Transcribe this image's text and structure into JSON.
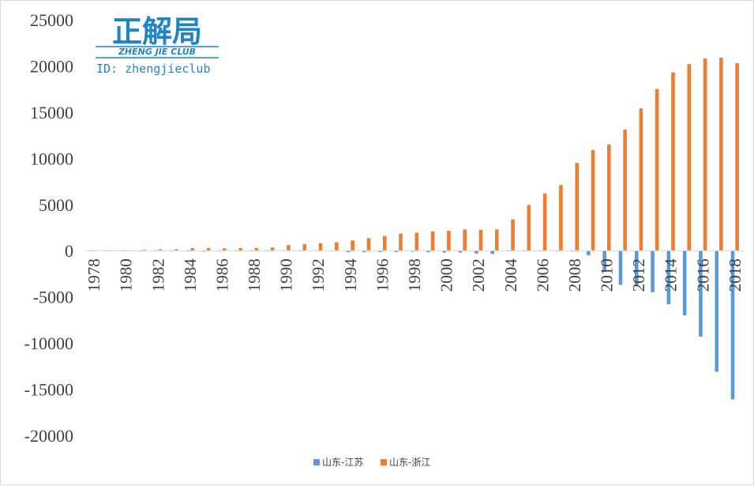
{
  "logo": {
    "title": "正解局",
    "subtitle": "ZHENG JIE CLUB",
    "id_line": "ID: zhengjieclub",
    "color": "#1e86c8"
  },
  "chart_data": {
    "type": "bar",
    "categories": [
      "1978",
      "1979",
      "1980",
      "1981",
      "1982",
      "1983",
      "1984",
      "1985",
      "1986",
      "1987",
      "1988",
      "1989",
      "1990",
      "1991",
      "1992",
      "1993",
      "1994",
      "1995",
      "1996",
      "1997",
      "1998",
      "1999",
      "2000",
      "2001",
      "2002",
      "2003",
      "2004",
      "2005",
      "2006",
      "2007",
      "2008",
      "2009",
      "2010",
      "2011",
      "2012",
      "2013",
      "2014",
      "2015",
      "2016",
      "2017",
      "2018"
    ],
    "x_tick_labels": [
      "1978",
      "1980",
      "1982",
      "1984",
      "1986",
      "1988",
      "1990",
      "1992",
      "1994",
      "1996",
      "1998",
      "2000",
      "2002",
      "2004",
      "2006",
      "2008",
      "2010",
      "2012",
      "2014",
      "2016",
      "2018"
    ],
    "series": [
      {
        "name": "山东-江苏",
        "color": "#5b9bd5",
        "values": [
          -40,
          -60,
          -50,
          -40,
          -60,
          -70,
          -80,
          -90,
          -60,
          -40,
          -20,
          -10,
          40,
          0,
          30,
          -60,
          -150,
          -170,
          -140,
          -150,
          -100,
          -170,
          -200,
          -200,
          -300,
          -350,
          -50,
          0,
          -30,
          -60,
          -80,
          -500,
          -2300,
          -3700,
          -3800,
          -4500,
          -5800,
          -7000,
          -9300,
          -13100,
          -16100
        ]
      },
      {
        "name": "山东-浙江",
        "color": "#ed7d31",
        "values": [
          50,
          -60,
          30,
          100,
          150,
          150,
          280,
          300,
          250,
          280,
          300,
          350,
          600,
          700,
          800,
          900,
          1100,
          1350,
          1600,
          1850,
          1950,
          2100,
          2150,
          2300,
          2250,
          2300,
          3400,
          4950,
          6200,
          7100,
          9500,
          10900,
          11500,
          13100,
          15400,
          17500,
          19300,
          20200,
          20800,
          20900,
          20300
        ]
      }
    ],
    "y_ticks": [
      25000,
      20000,
      15000,
      10000,
      5000,
      0,
      -5000,
      -10000,
      -15000,
      -20000
    ],
    "ylim": [
      -20000,
      25000
    ],
    "title": "",
    "xlabel": "",
    "ylabel": "",
    "legend": "bottom-center",
    "grid": false
  }
}
